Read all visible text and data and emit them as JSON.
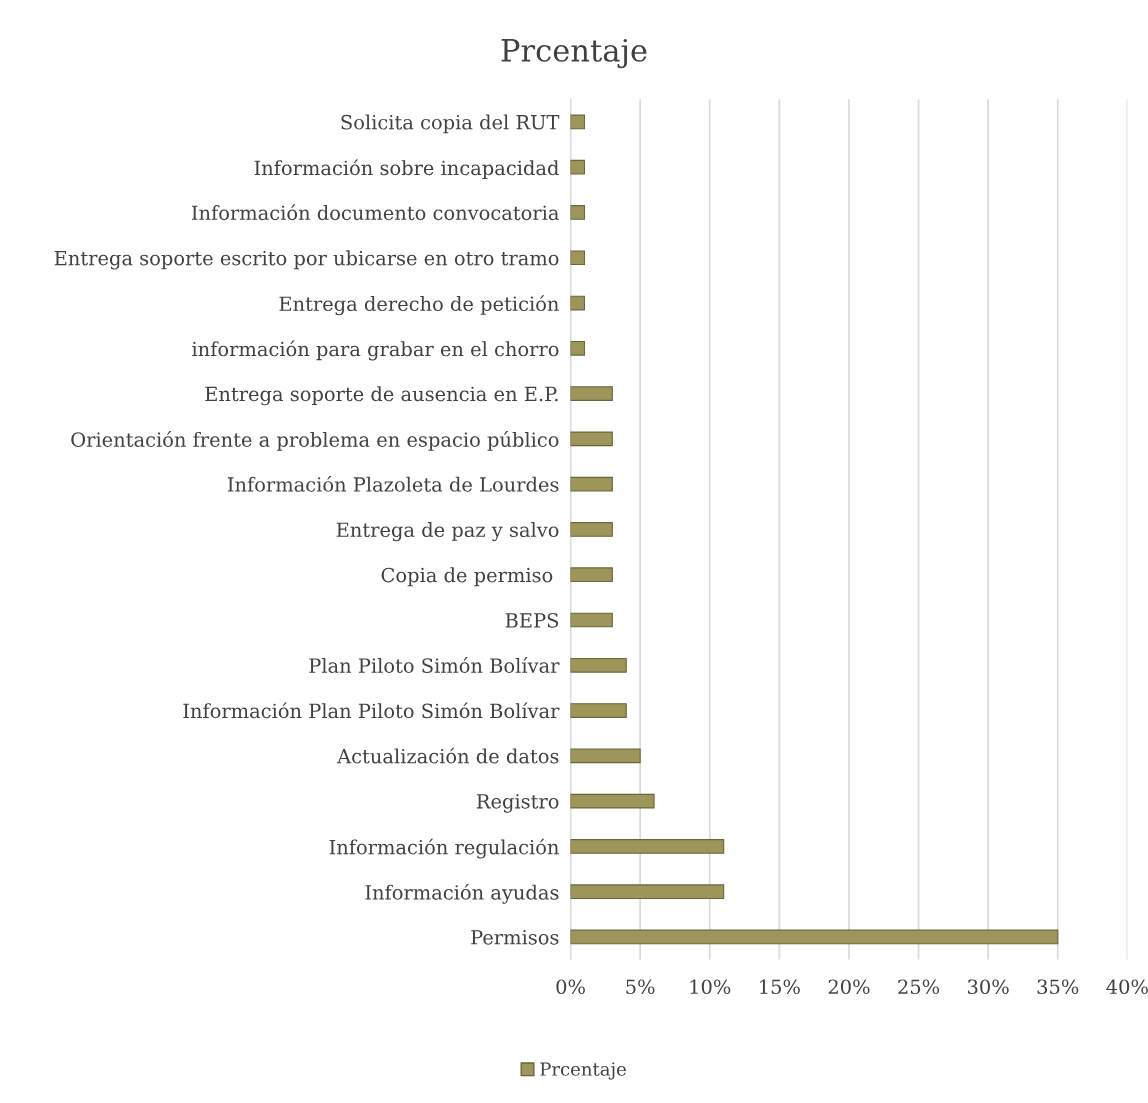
{
  "chart_data": {
    "type": "bar",
    "orientation": "horizontal",
    "title": "Prcentaje",
    "categories": [
      "Solicita copia del RUT",
      "Información sobre incapacidad",
      "Información documento convocatoria",
      "Entrega soporte escrito por ubicarse en otro tramo",
      "Entrega derecho de petición",
      "información para grabar en el chorro",
      "Entrega soporte de ausencia en E.P.",
      "Orientación frente a problema en espacio público",
      "Información Plazoleta de Lourdes",
      "Entrega de paz y salvo",
      "Copia de permiso ",
      "BEPS",
      "Plan Piloto Simón Bolívar",
      "Información Plan Piloto Simón Bolívar",
      "Actualización de datos",
      "Registro",
      "Información regulación",
      "Información ayudas",
      "Permisos"
    ],
    "series": [
      {
        "name": "Prcentaje",
        "color": "#9c965a",
        "values": [
          1,
          1,
          1,
          1,
          1,
          1,
          3,
          3,
          3,
          3,
          3,
          3,
          4,
          4,
          5,
          6,
          11,
          11,
          35
        ]
      }
    ],
    "xlim": [
      0,
      40
    ],
    "xticks": [
      {
        "value": 0,
        "label": "0%"
      },
      {
        "value": 5,
        "label": "5%"
      },
      {
        "value": 10,
        "label": "10%"
      },
      {
        "value": 15,
        "label": "15%"
      },
      {
        "value": 20,
        "label": "20%"
      },
      {
        "value": 25,
        "label": "25%"
      },
      {
        "value": 30,
        "label": "30%"
      },
      {
        "value": 35,
        "label": "35%"
      },
      {
        "value": 40,
        "label": "40%"
      }
    ],
    "grid": "x",
    "legend": "bottom"
  }
}
